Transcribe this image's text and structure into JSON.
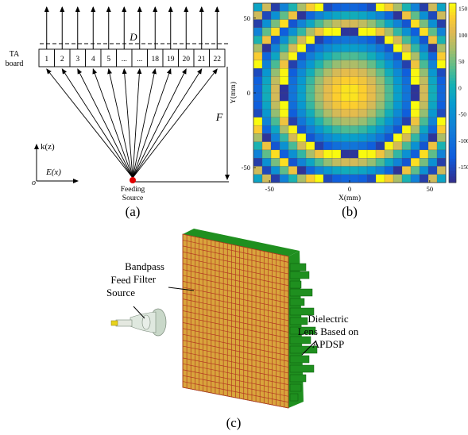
{
  "panel_a": {
    "caption": "(a)",
    "board_label_line1": "TA",
    "board_label_line2": "board",
    "d_label": "D",
    "f_label": "F",
    "source_label_line1": "Feeding",
    "source_label_line2": "Source",
    "k_axis_label": "k(z)",
    "e_axis_label": "E(x)",
    "origin_label": "o",
    "elements": [
      "1",
      "2",
      "3",
      "4",
      "5",
      "...",
      "...",
      "18",
      "19",
      "20",
      "21",
      "22"
    ],
    "source_color": "#e00000"
  },
  "panel_b": {
    "caption": "(b)",
    "xlabel": "X(mm)",
    "ylabel": "Y(mm)",
    "x_ticks": [
      "-50",
      "0",
      "50"
    ],
    "y_ticks": [
      "50",
      "0",
      "-50"
    ],
    "colorbar_ticks": [
      "150",
      "100",
      "50",
      "0",
      "-50",
      "-100",
      "-150"
    ],
    "colormap": "parula"
  },
  "panel_c": {
    "caption": "(c)",
    "bandpass_line1": "Bandpass",
    "bandpass_line2": "Filter",
    "feed_line1": "Feed",
    "feed_line2": "Source",
    "lens_line1": "Dielectric",
    "lens_line2": "Lens Based on",
    "lens_line3": "APDSP",
    "filter_color": "#d9a53c",
    "grid_line_color": "#b33a22",
    "lens_color": "#1f8f1f"
  },
  "chart_data": {
    "type": "heatmap",
    "title": "",
    "xlabel": "X(mm)",
    "ylabel": "Y(mm)",
    "xlim": [
      -60,
      60
    ],
    "ylim": [
      -60,
      60
    ],
    "clim": [
      -180,
      160
    ],
    "colorbar_ticks": [
      150,
      100,
      50,
      0,
      -50,
      -100,
      -150
    ],
    "grid_size": 22,
    "cell_pitch_mm": 5.45,
    "description_source": "radially symmetric phase compensation pattern"
  }
}
